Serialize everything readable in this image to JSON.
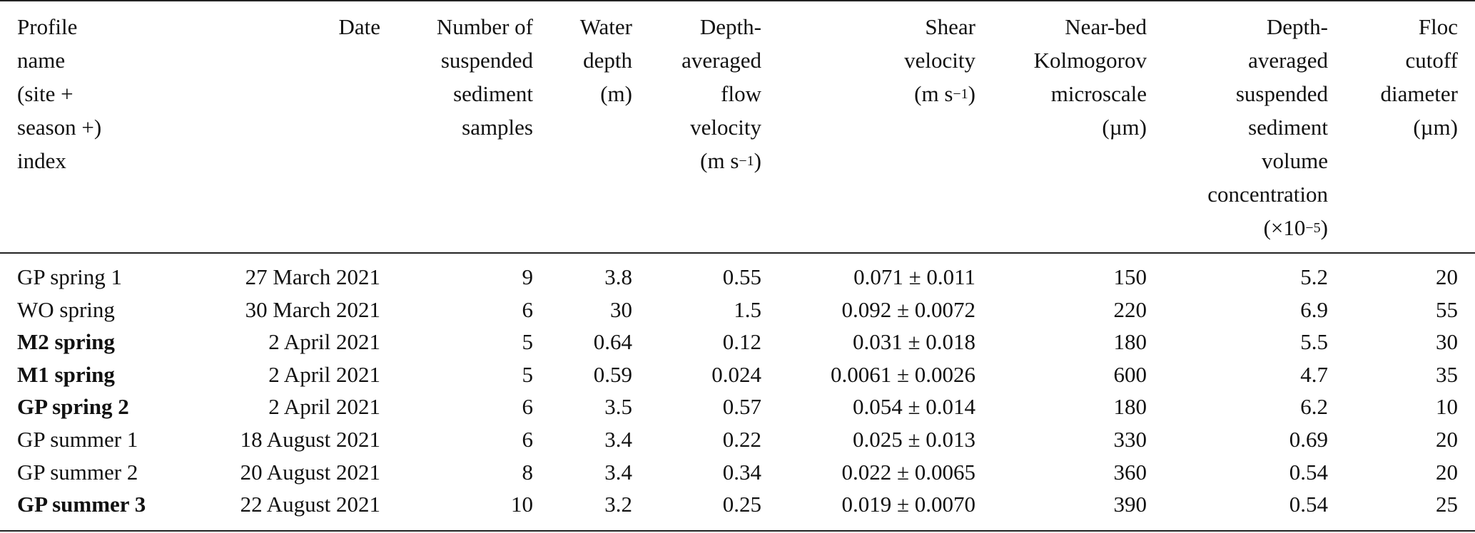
{
  "table": {
    "headers": {
      "profile": [
        "Profile",
        "name",
        "(site +",
        "season +)",
        "index"
      ],
      "date": [
        "Date"
      ],
      "samples": [
        "Number of",
        "suspended",
        "sediment",
        "samples"
      ],
      "depth": [
        "Water",
        "depth",
        "(m)"
      ],
      "flow": [
        "Depth-",
        "averaged",
        "flow",
        "velocity"
      ],
      "flow_unit": {
        "pre": "(m s",
        "sup": "−1",
        "post": ")"
      },
      "shear": [
        "Shear",
        "velocity"
      ],
      "shear_unit": {
        "pre": "(m s",
        "sup": "−1",
        "post": ")"
      },
      "kolmo": [
        "Near-bed",
        "Kolmogorov",
        "microscale",
        "(µm)"
      ],
      "conc": [
        "Depth-",
        "averaged",
        "suspended",
        "sediment",
        "volume",
        "concentration"
      ],
      "conc_unit": {
        "pre": "(×10",
        "sup": "−5",
        "post": ")"
      },
      "floc": [
        "Floc",
        "cutoff",
        "diameter",
        "(µm)"
      ]
    },
    "rows": [
      {
        "profile": "GP spring 1",
        "bold": false,
        "date": "27 March 2021",
        "samples": "9",
        "depth": "3.8",
        "flow": "0.55",
        "shear": "0.071 ± 0.011",
        "kolmo": "150",
        "conc": "5.2",
        "floc": "20"
      },
      {
        "profile": "WO spring",
        "bold": false,
        "date": "30 March 2021",
        "samples": "6",
        "depth": "30",
        "flow": "1.5",
        "shear": "0.092 ± 0.0072",
        "kolmo": "220",
        "conc": "6.9",
        "floc": "55"
      },
      {
        "profile": "M2 spring",
        "bold": true,
        "date": "2 April 2021",
        "samples": "5",
        "depth": "0.64",
        "flow": "0.12",
        "shear": "0.031 ± 0.018",
        "kolmo": "180",
        "conc": "5.5",
        "floc": "30"
      },
      {
        "profile": "M1 spring",
        "bold": true,
        "date": "2 April 2021",
        "samples": "5",
        "depth": "0.59",
        "flow": "0.024",
        "shear": "0.0061 ± 0.0026",
        "kolmo": "600",
        "conc": "4.7",
        "floc": "35"
      },
      {
        "profile": "GP spring 2",
        "bold": true,
        "date": "2 April 2021",
        "samples": "6",
        "depth": "3.5",
        "flow": "0.57",
        "shear": "0.054 ± 0.014",
        "kolmo": "180",
        "conc": "6.2",
        "floc": "10"
      },
      {
        "profile": "GP summer 1",
        "bold": false,
        "date": "18 August 2021",
        "samples": "6",
        "depth": "3.4",
        "flow": "0.22",
        "shear": "0.025 ± 0.013",
        "kolmo": "330",
        "conc": "0.69",
        "floc": "20"
      },
      {
        "profile": "GP summer 2",
        "bold": false,
        "date": "20 August 2021",
        "samples": "8",
        "depth": "3.4",
        "flow": "0.34",
        "shear": "0.022 ± 0.0065",
        "kolmo": "360",
        "conc": "0.54",
        "floc": "20"
      },
      {
        "profile": "GP summer 3",
        "bold": true,
        "date": "22 August 2021",
        "samples": "10",
        "depth": "3.2",
        "flow": "0.25",
        "shear": "0.019 ± 0.0070",
        "kolmo": "390",
        "conc": "0.54",
        "floc": "25"
      }
    ]
  }
}
